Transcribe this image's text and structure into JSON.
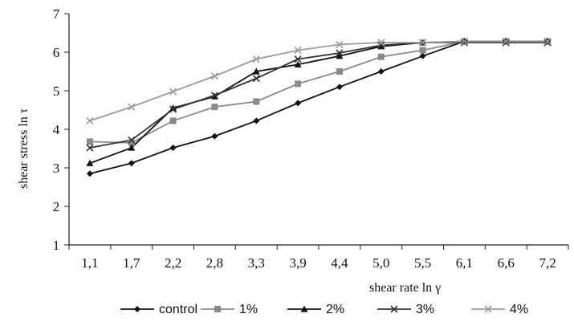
{
  "chart_data": {
    "type": "line",
    "xlabel": "shear rate  ln γ",
    "ylabel": "shear stress ln τ",
    "x": [
      "1,1",
      "1,7",
      "2,2",
      "2,8",
      "3,3",
      "3,9",
      "4,4",
      "5,0",
      "5,5",
      "6,1",
      "6,6",
      "7,2"
    ],
    "ylim": [
      1,
      7
    ],
    "yticks": [
      "1",
      "2",
      "3",
      "4",
      "5",
      "6",
      "7"
    ],
    "grid": false,
    "legend_position": "bottom",
    "series": [
      {
        "name": "control",
        "marker": "diamond",
        "color": "#111111",
        "values": [
          2.85,
          3.12,
          3.52,
          3.82,
          4.22,
          4.68,
          5.1,
          5.5,
          5.9,
          6.28,
          6.28,
          6.28
        ]
      },
      {
        "name": "1%",
        "marker": "square",
        "color": "#8a8a8a",
        "values": [
          3.68,
          3.65,
          4.22,
          4.58,
          4.72,
          5.18,
          5.5,
          5.88,
          6.05,
          6.28,
          6.28,
          6.28
        ]
      },
      {
        "name": "2%",
        "marker": "triangle",
        "color": "#111111",
        "values": [
          3.12,
          3.52,
          4.55,
          4.85,
          5.5,
          5.68,
          5.9,
          6.15,
          6.25,
          6.28,
          6.28,
          6.28
        ]
      },
      {
        "name": "3%",
        "marker": "x",
        "color": "#333333",
        "values": [
          3.52,
          3.72,
          4.52,
          4.88,
          5.32,
          5.82,
          5.98,
          6.18,
          6.25,
          6.25,
          6.25,
          6.25
        ]
      },
      {
        "name": "4%",
        "marker": "x",
        "color": "#9a9a9a",
        "values": [
          4.22,
          4.58,
          4.98,
          5.38,
          5.82,
          6.05,
          6.2,
          6.25,
          6.25,
          6.28,
          6.28,
          6.28
        ]
      }
    ]
  }
}
